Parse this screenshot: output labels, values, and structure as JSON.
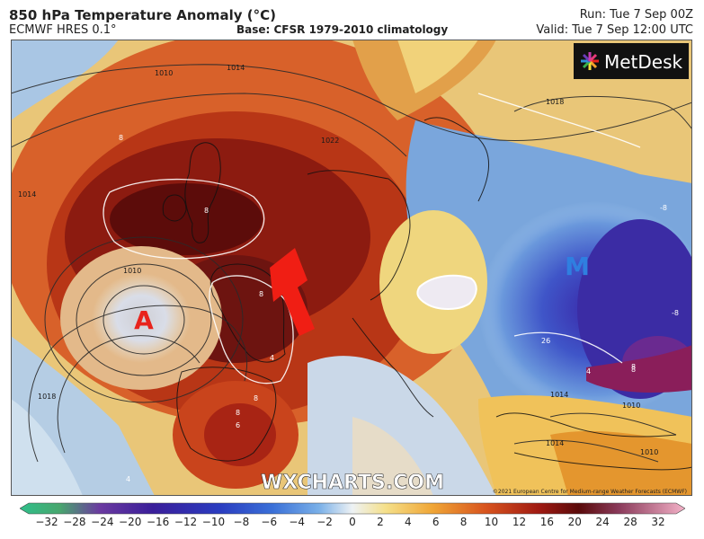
{
  "header": {
    "title": "850 hPa Temperature Anomaly (°C)",
    "model": "ECMWF HRES 0.1°",
    "base": "Base: CFSR 1979-2010 climatology",
    "run": "Run: Tue 7 Sep 00Z",
    "valid": "Valid: Tue 7 Sep 12:00 UTC"
  },
  "map": {
    "high_label": "A",
    "low_label": "M",
    "watermark": "WXCHARTS.COM",
    "brand": "MetDesk",
    "copyright": "©2021 European Centre for Medium-range Weather Forecasts (ECMWF)",
    "isobar_labels": [
      "1010",
      "1014",
      "1014",
      "1018",
      "1022",
      "1014",
      "1010",
      "1018",
      "1010",
      "1014",
      "1010"
    ],
    "anomaly_labels": [
      "8",
      "8",
      "8",
      "8",
      "8",
      "4",
      "4",
      "6",
      "26",
      "-8",
      "-8",
      "8",
      "8",
      "4"
    ],
    "colors": {
      "high_marker": "#e8231c",
      "low_marker": "#2f7fe0",
      "arrow": "#f01e14"
    }
  },
  "colorbar": {
    "ticks": [
      "−32",
      "−28",
      "−24",
      "−20",
      "−16",
      "−12",
      "−10",
      "−8",
      "−6",
      "−4",
      "−2",
      "0",
      "2",
      "4",
      "6",
      "8",
      "10",
      "12",
      "16",
      "20",
      "24",
      "28",
      "32"
    ]
  }
}
